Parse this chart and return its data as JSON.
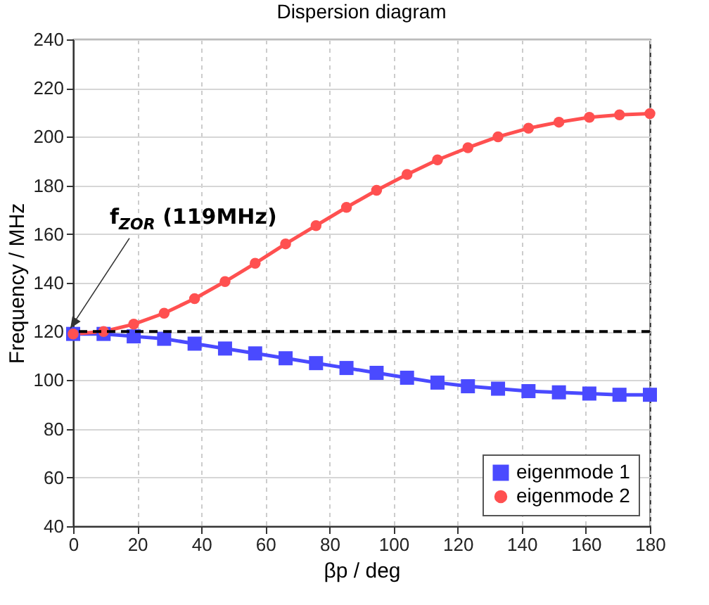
{
  "chart_data": {
    "type": "line",
    "title": "Dispersion diagram",
    "xlabel": "βp / deg",
    "ylabel": "Frequency / MHz",
    "x": [
      0,
      9.5,
      18.9,
      28.4,
      37.9,
      47.4,
      56.8,
      66.3,
      75.8,
      85.3,
      94.7,
      104.2,
      113.7,
      123.2,
      132.6,
      142.1,
      151.6,
      161.1,
      170.5,
      180
    ],
    "series": [
      {
        "name": "eigenmode 1",
        "color": "#4a4aff",
        "marker": "square",
        "values": [
          119,
          119,
          118,
          117,
          115,
          113,
          111,
          109,
          107,
          105,
          103,
          101,
          99,
          97.5,
          96.5,
          95.5,
          95,
          94.5,
          94,
          94
        ]
      },
      {
        "name": "eigenmode 2",
        "color": "#ff5050",
        "marker": "circle",
        "values": [
          119,
          120,
          123,
          127.5,
          133.5,
          140.5,
          148,
          156,
          163.5,
          171,
          178,
          184.5,
          190.5,
          195.5,
          200,
          203.5,
          206,
          208,
          209,
          209.5
        ]
      }
    ],
    "xlim": [
      0,
      180
    ],
    "xticks": [
      0,
      20,
      40,
      60,
      80,
      100,
      120,
      140,
      160,
      180
    ],
    "ylim": [
      40,
      240
    ],
    "yticks": [
      40,
      60,
      80,
      100,
      120,
      140,
      160,
      180,
      200,
      220,
      240
    ],
    "ref_lines": [
      {
        "axis": "y",
        "value": 120,
        "color": "#000000",
        "line_style": "dashed"
      }
    ],
    "annotations": [
      {
        "text": "f$_{ZOR}$ (119MHz)",
        "x": 0,
        "y": 119
      }
    ],
    "grid": true,
    "legend": "bottom right",
    "line_style": "solid"
  }
}
